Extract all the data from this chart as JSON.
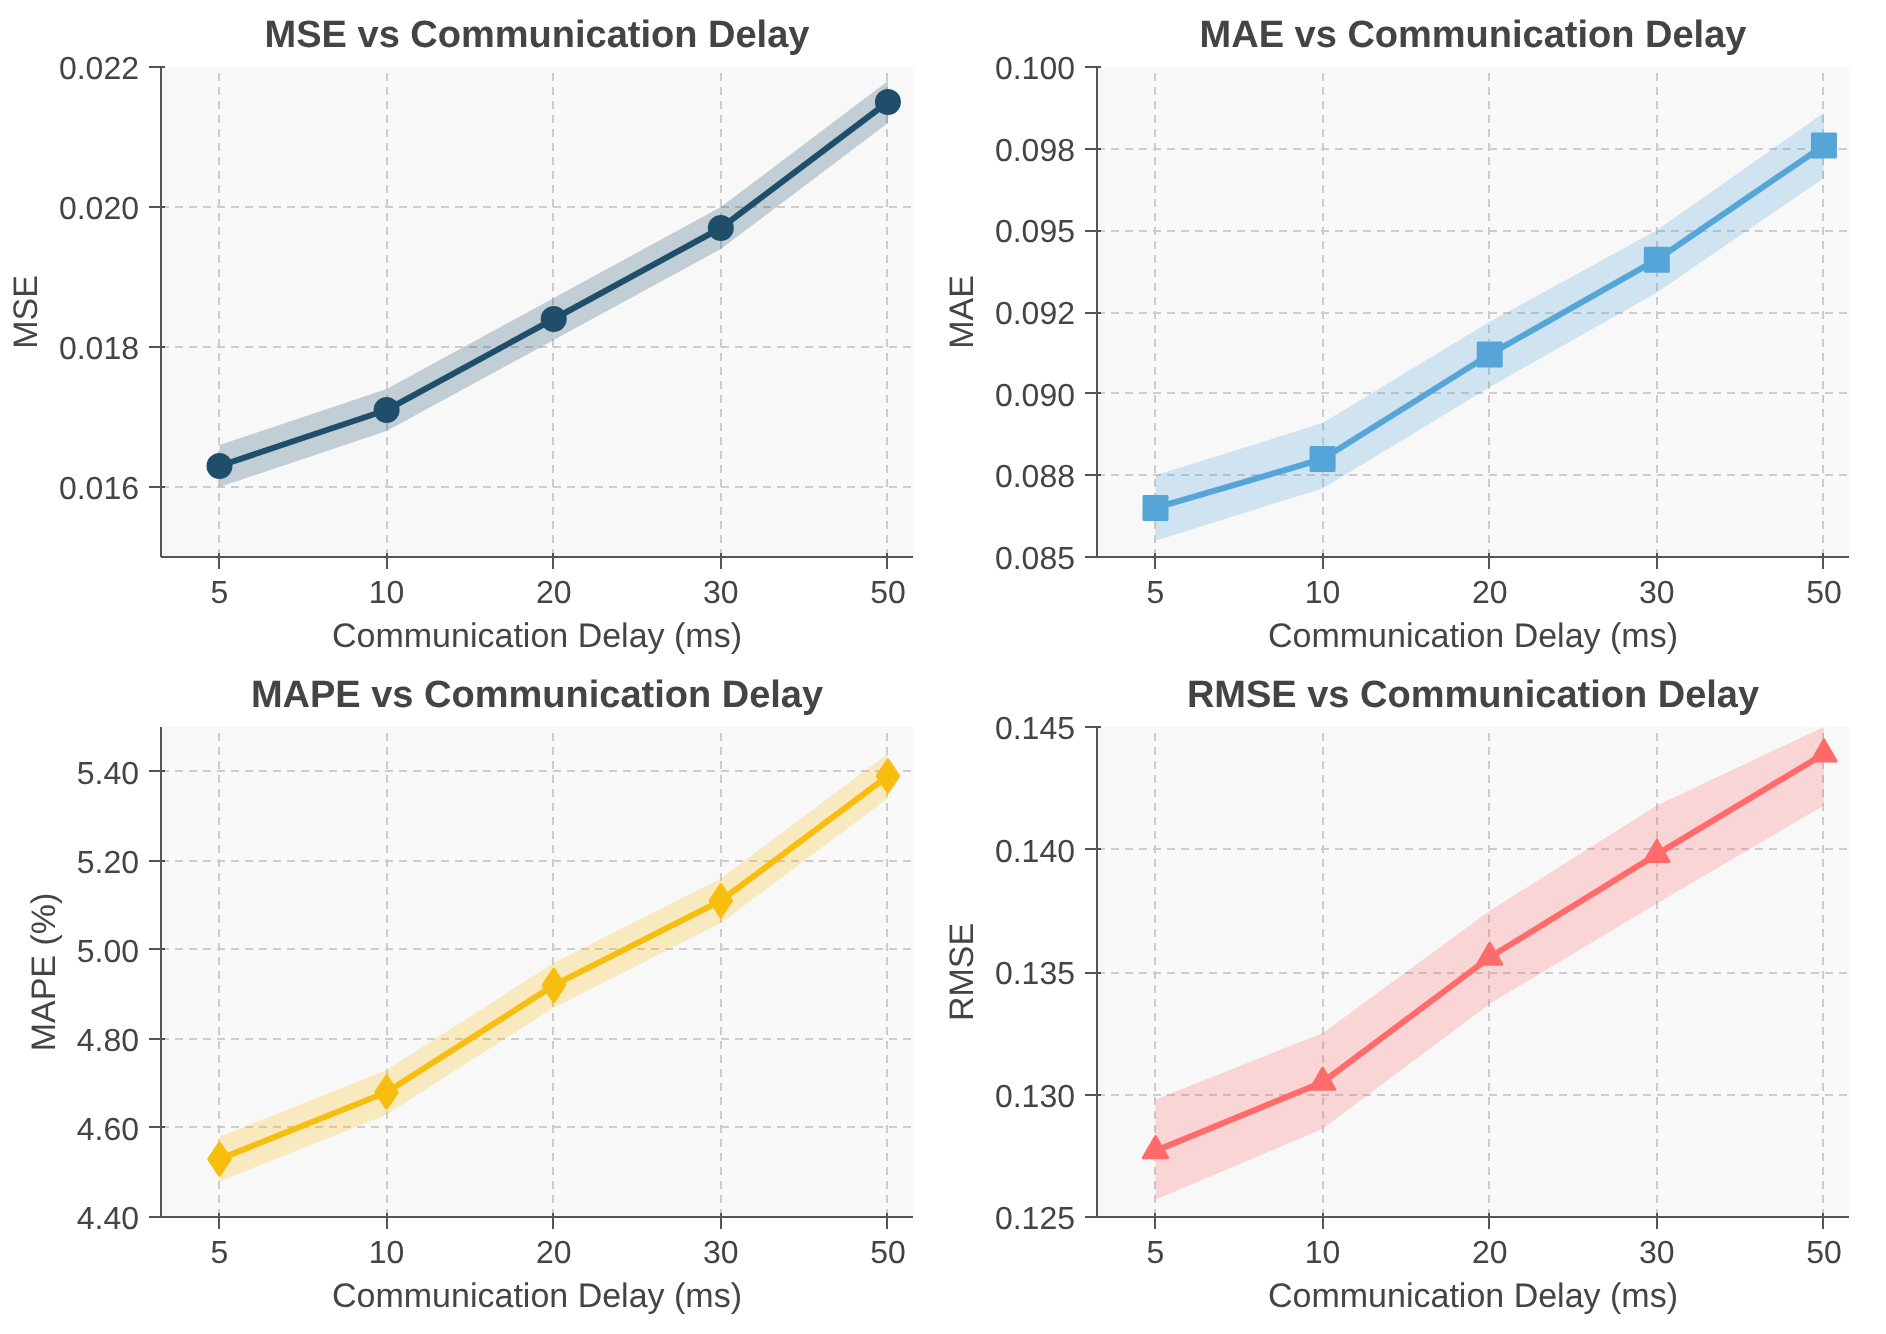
{
  "chart_data": [
    {
      "type": "line",
      "title": "MSE vs Communication Delay",
      "xlabel": "Communication Delay (ms)",
      "ylabel": "MSE",
      "categories": [
        "5",
        "10",
        "20",
        "30",
        "50"
      ],
      "marker": "circle",
      "grid": true,
      "ylim": [
        0.015,
        0.022
      ],
      "yticks": [
        0.016,
        0.018,
        {
          "value": 0.02,
          "label": "0.020"
        },
        0.022
      ],
      "series": [
        {
          "color": "#1f4e6b",
          "values": [
            0.0163,
            0.0171,
            0.0184,
            0.0197,
            0.0215
          ],
          "lower": [
            0.016,
            0.0168,
            0.0181,
            0.0194,
            0.0212
          ],
          "upper": [
            0.0166,
            0.0174,
            0.0187,
            0.02,
            0.0218
          ]
        }
      ]
    },
    {
      "type": "line",
      "title": "MAE vs Communication Delay",
      "xlabel": "Communication Delay (ms)",
      "ylabel": "MAE",
      "categories": [
        "5",
        "10",
        "20",
        "30",
        "50"
      ],
      "marker": "square",
      "grid": true,
      "ylim": [
        0.085,
        0.1
      ],
      "yticks": [
        0.085,
        {
          "value": 0.0875,
          "label": "0.088"
        },
        {
          "value": 0.09,
          "label": "0.090"
        },
        {
          "value": 0.0925,
          "label": "0.092"
        },
        0.095,
        {
          "value": 0.0975,
          "label": "0.098"
        },
        {
          "value": 0.1,
          "label": "0.100"
        }
      ],
      "series": [
        {
          "color": "#55a5d8",
          "values": [
            0.0865,
            0.088,
            0.0912,
            0.0941,
            0.0976
          ],
          "lower": [
            0.0855,
            0.0871,
            0.0902,
            0.0931,
            0.0966
          ],
          "upper": [
            0.0875,
            0.0891,
            0.0922,
            0.095,
            0.0986
          ]
        }
      ]
    },
    {
      "type": "line",
      "title": "MAPE vs Communication Delay",
      "xlabel": "Communication Delay (ms)",
      "ylabel": "MAPE (%)",
      "categories": [
        "5",
        "10",
        "20",
        "30",
        "50"
      ],
      "marker": "diamond",
      "grid": true,
      "ylim": [
        4.4,
        5.5
      ],
      "yticks": [
        {
          "value": 4.4,
          "label": "4.40"
        },
        {
          "value": 4.6,
          "label": "4.60"
        },
        {
          "value": 4.8,
          "label": "4.80"
        },
        {
          "value": 5.0,
          "label": "5.00"
        },
        {
          "value": 5.2,
          "label": "5.20"
        },
        {
          "value": 5.4,
          "label": "5.40"
        }
      ],
      "series": [
        {
          "color": "#f7be10",
          "values": [
            4.53,
            4.68,
            4.92,
            5.11,
            5.39
          ],
          "lower": [
            4.48,
            4.63,
            4.87,
            5.06,
            5.34
          ],
          "upper": [
            4.58,
            4.73,
            4.97,
            5.16,
            5.44
          ]
        }
      ]
    },
    {
      "type": "line",
      "title": "RMSE vs Communication Delay",
      "xlabel": "Communication Delay (ms)",
      "ylabel": "RMSE",
      "categories": [
        "5",
        "10",
        "20",
        "30",
        "50"
      ],
      "marker": "triangle",
      "grid": true,
      "ylim": [
        0.125,
        0.145
      ],
      "yticks": [
        0.125,
        {
          "value": 0.13,
          "label": "0.130"
        },
        0.135,
        {
          "value": 0.14,
          "label": "0.140"
        },
        0.145
      ],
      "series": [
        {
          "color": "#ff6b6b",
          "values": [
            0.1277,
            0.1305,
            0.1356,
            0.1398,
            0.1439
          ],
          "lower": [
            0.1257,
            0.1286,
            0.1337,
            0.1378,
            0.1418
          ],
          "upper": [
            0.1298,
            0.1325,
            0.1375,
            0.1418,
            0.145
          ]
        }
      ]
    }
  ]
}
